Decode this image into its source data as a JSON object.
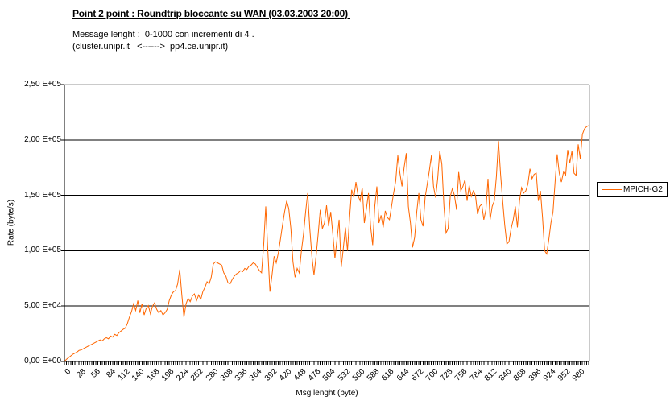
{
  "chart_data": {
    "type": "line",
    "title": "Point 2 point : Roundtrip bloccante su WAN (03.03.2003 20:00) ",
    "subtitle1": "Message lenght :  0-1000 con incrementi di 4 .",
    "subtitle2": "(cluster.unipr.it   <------>  pp4.ce.unipr.it)",
    "xlabel": "Msg lenght (byte)",
    "ylabel": "Rate (byte/s)",
    "xlim": [
      0,
      1000
    ],
    "ylim": [
      0,
      250000
    ],
    "grid": "horizontal-on",
    "legend_position": "right",
    "x_minor_tick_step": 4,
    "xtick_values": [
      0,
      28,
      56,
      84,
      112,
      140,
      168,
      196,
      224,
      252,
      280,
      308,
      336,
      364,
      392,
      420,
      448,
      476,
      504,
      532,
      560,
      588,
      616,
      644,
      672,
      700,
      728,
      756,
      784,
      812,
      840,
      868,
      896,
      924,
      952,
      980
    ],
    "ytick_values": [
      0,
      50000,
      100000,
      150000,
      200000,
      250000
    ],
    "ytick_labels": [
      "0,00 E+00",
      "5,00 E+04",
      "1,00 E+05",
      "1,50 E+05",
      "2,00 E+05",
      "2,50 E+05"
    ],
    "colors": {
      "series": "#FF6600",
      "grid": "#000000",
      "axis": "#000000",
      "plot_border": "#969696",
      "background": "#FFFFFF"
    },
    "series": [
      {
        "name": "MPICH-G2",
        "color": "#FF6600",
        "points": [
          [
            0,
            0
          ],
          [
            4,
            2000
          ],
          [
            8,
            3500
          ],
          [
            12,
            5000
          ],
          [
            16,
            6500
          ],
          [
            20,
            7500
          ],
          [
            24,
            8500
          ],
          [
            28,
            10000
          ],
          [
            32,
            10500
          ],
          [
            36,
            11500
          ],
          [
            40,
            12500
          ],
          [
            44,
            13500
          ],
          [
            48,
            14500
          ],
          [
            52,
            15500
          ],
          [
            56,
            16500
          ],
          [
            60,
            17500
          ],
          [
            64,
            18500
          ],
          [
            68,
            19500
          ],
          [
            72,
            18500
          ],
          [
            76,
            20500
          ],
          [
            80,
            21500
          ],
          [
            84,
            20500
          ],
          [
            88,
            23000
          ],
          [
            92,
            22000
          ],
          [
            96,
            24500
          ],
          [
            100,
            23500
          ],
          [
            104,
            26000
          ],
          [
            108,
            27500
          ],
          [
            112,
            29000
          ],
          [
            116,
            30000
          ],
          [
            120,
            34000
          ],
          [
            124,
            40000
          ],
          [
            128,
            45000
          ],
          [
            132,
            52000
          ],
          [
            136,
            46000
          ],
          [
            140,
            55000
          ],
          [
            144,
            44000
          ],
          [
            148,
            52000
          ],
          [
            152,
            42000
          ],
          [
            156,
            48000
          ],
          [
            160,
            50500
          ],
          [
            164,
            43000
          ],
          [
            168,
            50000
          ],
          [
            172,
            53000
          ],
          [
            176,
            47000
          ],
          [
            180,
            44000
          ],
          [
            184,
            46000
          ],
          [
            188,
            42000
          ],
          [
            192,
            44000
          ],
          [
            196,
            47000
          ],
          [
            200,
            55000
          ],
          [
            204,
            60000
          ],
          [
            208,
            63000
          ],
          [
            212,
            64000
          ],
          [
            216,
            70000
          ],
          [
            220,
            83000
          ],
          [
            224,
            60000
          ],
          [
            228,
            40000
          ],
          [
            232,
            52000
          ],
          [
            236,
            57000
          ],
          [
            240,
            54000
          ],
          [
            244,
            59000
          ],
          [
            248,
            61000
          ],
          [
            252,
            55000
          ],
          [
            256,
            60000
          ],
          [
            260,
            56000
          ],
          [
            264,
            63000
          ],
          [
            268,
            67000
          ],
          [
            272,
            72000
          ],
          [
            276,
            70000
          ],
          [
            280,
            76000
          ],
          [
            284,
            88000
          ],
          [
            288,
            90000
          ],
          [
            292,
            89000
          ],
          [
            296,
            88000
          ],
          [
            300,
            87000
          ],
          [
            304,
            80000
          ],
          [
            308,
            77000
          ],
          [
            312,
            71000
          ],
          [
            316,
            70000
          ],
          [
            320,
            74000
          ],
          [
            324,
            77000
          ],
          [
            328,
            79000
          ],
          [
            332,
            80000
          ],
          [
            336,
            82000
          ],
          [
            340,
            81000
          ],
          [
            344,
            84000
          ],
          [
            348,
            83000
          ],
          [
            352,
            86000
          ],
          [
            356,
            87000
          ],
          [
            360,
            89000
          ],
          [
            364,
            88000
          ],
          [
            368,
            85000
          ],
          [
            372,
            82000
          ],
          [
            376,
            80000
          ],
          [
            380,
            105000
          ],
          [
            384,
            140000
          ],
          [
            388,
            100000
          ],
          [
            392,
            63000
          ],
          [
            396,
            78000
          ],
          [
            400,
            95000
          ],
          [
            404,
            89000
          ],
          [
            408,
            98000
          ],
          [
            412,
            110000
          ],
          [
            416,
            123000
          ],
          [
            420,
            135000
          ],
          [
            424,
            145000
          ],
          [
            428,
            138000
          ],
          [
            432,
            120000
          ],
          [
            436,
            90000
          ],
          [
            440,
            76000
          ],
          [
            444,
            84000
          ],
          [
            448,
            80000
          ],
          [
            452,
            100000
          ],
          [
            456,
            115000
          ],
          [
            460,
            135000
          ],
          [
            464,
            152000
          ],
          [
            468,
            120000
          ],
          [
            472,
            95000
          ],
          [
            476,
            78000
          ],
          [
            480,
            95000
          ],
          [
            484,
            115000
          ],
          [
            488,
            137000
          ],
          [
            492,
            120000
          ],
          [
            496,
            125000
          ],
          [
            500,
            141000
          ],
          [
            504,
            122000
          ],
          [
            508,
            135000
          ],
          [
            512,
            115000
          ],
          [
            516,
            93000
          ],
          [
            520,
            110000
          ],
          [
            524,
            128000
          ],
          [
            528,
            85000
          ],
          [
            532,
            102000
          ],
          [
            536,
            121000
          ],
          [
            540,
            100000
          ],
          [
            544,
            130000
          ],
          [
            548,
            155000
          ],
          [
            552,
            148000
          ],
          [
            556,
            162000
          ],
          [
            560,
            150000
          ],
          [
            564,
            145000
          ],
          [
            568,
            157000
          ],
          [
            572,
            125000
          ],
          [
            576,
            138000
          ],
          [
            580,
            152000
          ],
          [
            584,
            122000
          ],
          [
            588,
            105000
          ],
          [
            592,
            140000
          ],
          [
            596,
            158000
          ],
          [
            600,
            125000
          ],
          [
            604,
            132000
          ],
          [
            608,
            121000
          ],
          [
            612,
            136000
          ],
          [
            616,
            130000
          ],
          [
            620,
            128000
          ],
          [
            624,
            140000
          ],
          [
            628,
            152000
          ],
          [
            632,
            163000
          ],
          [
            636,
            186000
          ],
          [
            640,
            170000
          ],
          [
            644,
            158000
          ],
          [
            648,
            175000
          ],
          [
            652,
            188000
          ],
          [
            656,
            140000
          ],
          [
            660,
            125000
          ],
          [
            664,
            103000
          ],
          [
            668,
            112000
          ],
          [
            672,
            135000
          ],
          [
            676,
            152000
          ],
          [
            680,
            128000
          ],
          [
            684,
            122000
          ],
          [
            688,
            148000
          ],
          [
            692,
            160000
          ],
          [
            696,
            172000
          ],
          [
            700,
            186000
          ],
          [
            704,
            158000
          ],
          [
            708,
            148000
          ],
          [
            712,
            165000
          ],
          [
            716,
            190000
          ],
          [
            720,
            178000
          ],
          [
            724,
            140000
          ],
          [
            728,
            116000
          ],
          [
            732,
            120000
          ],
          [
            736,
            149000
          ],
          [
            740,
            156000
          ],
          [
            744,
            150000
          ],
          [
            748,
            137000
          ],
          [
            752,
            171000
          ],
          [
            756,
            154000
          ],
          [
            760,
            158000
          ],
          [
            764,
            164000
          ],
          [
            768,
            145000
          ],
          [
            772,
            159000
          ],
          [
            776,
            149000
          ],
          [
            780,
            154000
          ],
          [
            784,
            150000
          ],
          [
            788,
            133000
          ],
          [
            792,
            140000
          ],
          [
            796,
            142000
          ],
          [
            800,
            128000
          ],
          [
            804,
            137000
          ],
          [
            808,
            165000
          ],
          [
            812,
            128000
          ],
          [
            816,
            140000
          ],
          [
            820,
            145000
          ],
          [
            824,
            167000
          ],
          [
            828,
            199000
          ],
          [
            832,
            169000
          ],
          [
            836,
            145000
          ],
          [
            840,
            123000
          ],
          [
            844,
            106000
          ],
          [
            848,
            108000
          ],
          [
            852,
            120000
          ],
          [
            856,
            128000
          ],
          [
            860,
            140000
          ],
          [
            864,
            121000
          ],
          [
            868,
            145000
          ],
          [
            872,
            157000
          ],
          [
            876,
            152000
          ],
          [
            880,
            154000
          ],
          [
            884,
            160000
          ],
          [
            888,
            174000
          ],
          [
            892,
            165000
          ],
          [
            896,
            169000
          ],
          [
            900,
            170000
          ],
          [
            904,
            145000
          ],
          [
            908,
            154000
          ],
          [
            912,
            130000
          ],
          [
            916,
            100000
          ],
          [
            920,
            97000
          ],
          [
            924,
            110000
          ],
          [
            928,
            125000
          ],
          [
            932,
            135000
          ],
          [
            936,
            162000
          ],
          [
            940,
            187000
          ],
          [
            944,
            170000
          ],
          [
            948,
            162000
          ],
          [
            952,
            171000
          ],
          [
            956,
            168000
          ],
          [
            960,
            191000
          ],
          [
            964,
            179000
          ],
          [
            968,
            190000
          ],
          [
            972,
            170000
          ],
          [
            976,
            168000
          ],
          [
            980,
            196000
          ],
          [
            984,
            183000
          ],
          [
            988,
            205000
          ],
          [
            992,
            210000
          ],
          [
            996,
            212000
          ],
          [
            1000,
            213000
          ]
        ]
      }
    ]
  }
}
